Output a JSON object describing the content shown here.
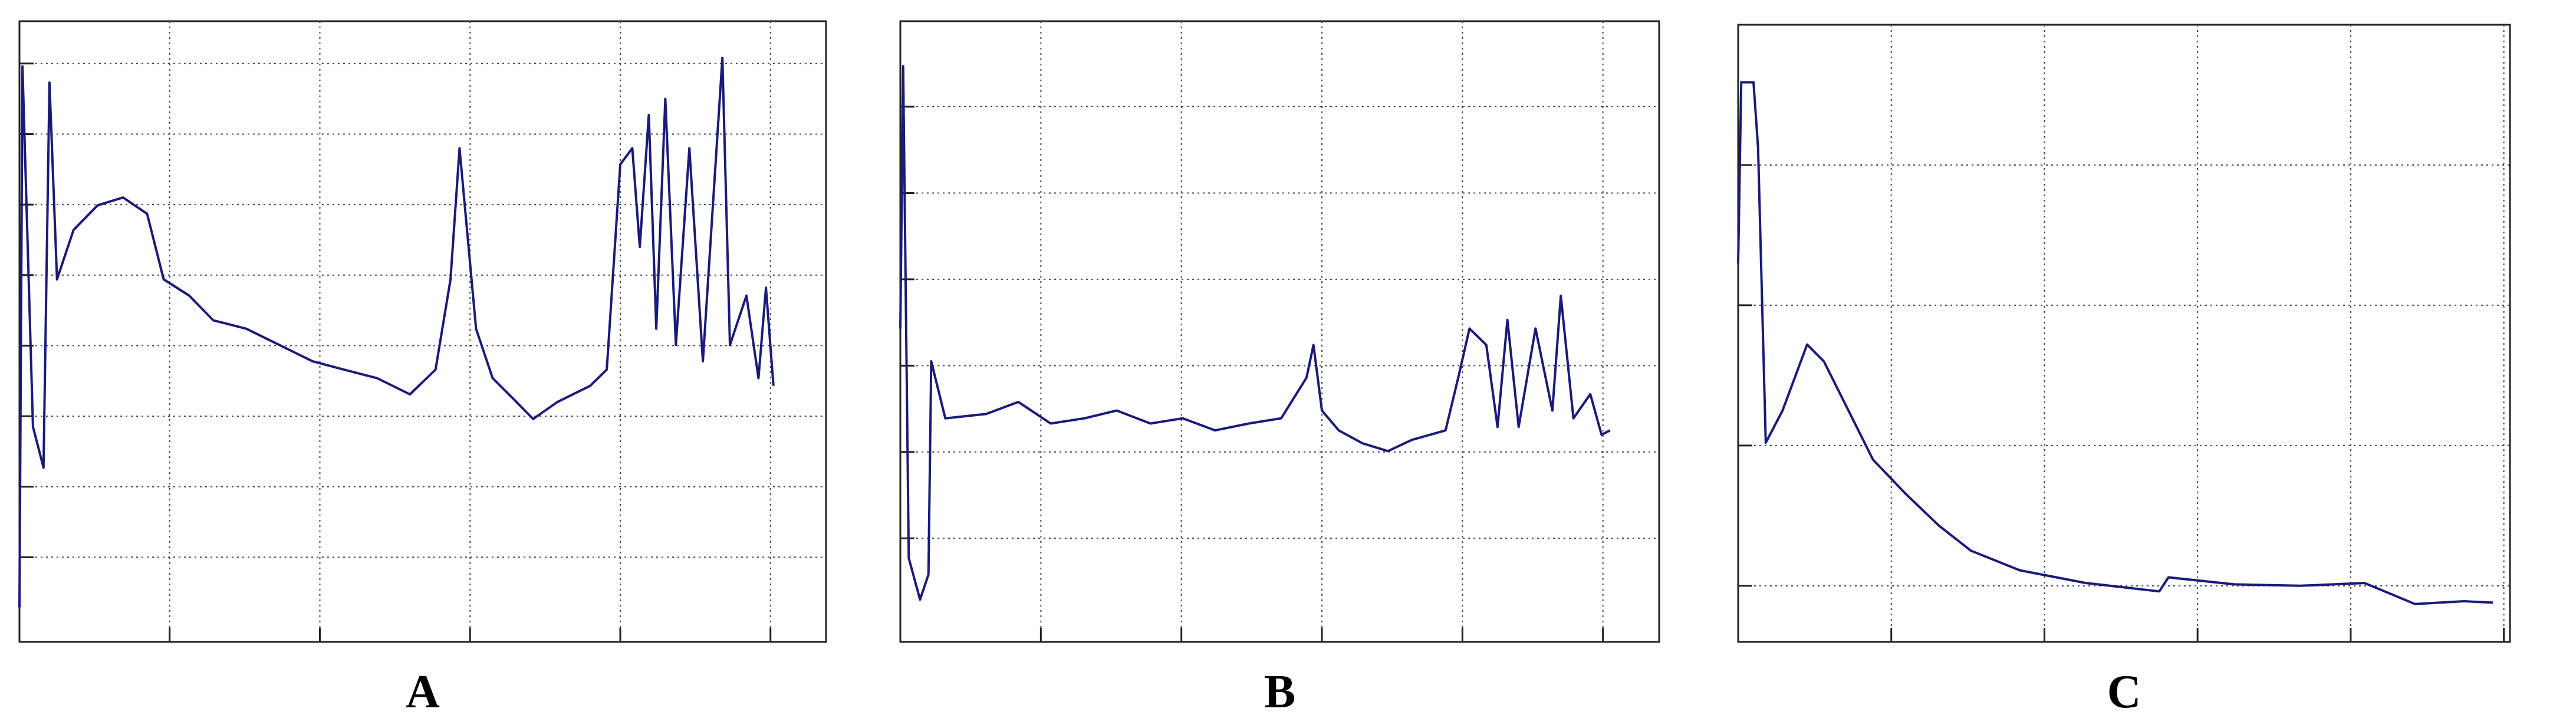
{
  "chart_data": [
    {
      "type": "line",
      "title": "A",
      "color": "#1a1a7a",
      "grid": true,
      "xlim": [
        0,
        5.37
      ],
      "xticks": [
        1,
        2,
        3,
        4,
        5
      ],
      "ylim": [
        0,
        8.8
      ],
      "yticks": [
        1.2,
        2.2,
        3.2,
        4.2,
        5.2,
        6.2,
        7.2,
        8.2
      ],
      "x": [
        0.0,
        0.02,
        0.09,
        0.16,
        0.2,
        0.25,
        0.36,
        0.52,
        0.69,
        0.85,
        0.96,
        1.13,
        1.29,
        1.51,
        1.73,
        1.95,
        2.16,
        2.38,
        2.6,
        2.77,
        2.87,
        2.93,
        3.04,
        3.15,
        3.31,
        3.42,
        3.58,
        3.8,
        3.91,
        4.0,
        4.08,
        4.13,
        4.19,
        4.24,
        4.3,
        4.37,
        4.46,
        4.55,
        4.68,
        4.73,
        4.84,
        4.92,
        4.97,
        5.02
      ],
      "values": [
        0.49,
        8.16,
        3.05,
        2.47,
        7.93,
        5.14,
        5.84,
        6.19,
        6.3,
        6.07,
        5.14,
        4.91,
        4.56,
        4.44,
        4.21,
        3.98,
        3.86,
        3.74,
        3.51,
        3.86,
        5.14,
        7.0,
        4.44,
        3.74,
        3.4,
        3.16,
        3.4,
        3.63,
        3.86,
        6.77,
        7.0,
        5.6,
        7.47,
        4.44,
        7.7,
        4.21,
        7.0,
        3.98,
        8.28,
        4.21,
        4.91,
        3.74,
        5.02,
        3.63
      ]
    },
    {
      "type": "line",
      "title": "B",
      "color": "#1a1a7a",
      "grid": true,
      "xlim": [
        0,
        5.4
      ],
      "xticks": [
        1,
        2,
        3,
        4,
        5
      ],
      "ylim": [
        0,
        7.19
      ],
      "yticks": [
        1.2,
        2.2,
        3.2,
        4.2,
        5.2,
        6.2
      ],
      "x": [
        0.0,
        0.02,
        0.06,
        0.14,
        0.2,
        0.22,
        0.32,
        0.61,
        0.84,
        1.07,
        1.31,
        1.54,
        1.78,
        2.01,
        2.24,
        2.48,
        2.71,
        2.89,
        2.94,
        3.0,
        3.12,
        3.29,
        3.47,
        3.64,
        3.88,
        3.97,
        4.05,
        4.17,
        4.25,
        4.32,
        4.4,
        4.52,
        4.64,
        4.7,
        4.79,
        4.91,
        4.99,
        5.05
      ],
      "values": [
        3.63,
        6.67,
        0.97,
        0.49,
        0.78,
        3.25,
        2.59,
        2.64,
        2.78,
        2.53,
        2.59,
        2.68,
        2.53,
        2.59,
        2.45,
        2.53,
        2.59,
        3.06,
        3.44,
        2.68,
        2.45,
        2.3,
        2.21,
        2.34,
        2.45,
        3.06,
        3.63,
        3.44,
        2.49,
        3.73,
        2.49,
        3.63,
        2.68,
        4.01,
        2.59,
        2.87,
        2.4,
        2.45
      ]
    },
    {
      "type": "line",
      "title": "C",
      "color": "#1a1a7a",
      "grid": true,
      "xlim": [
        0,
        5.04
      ],
      "xticks": [
        1,
        2,
        3,
        4,
        5
      ],
      "ylim": [
        0,
        4.4
      ],
      "yticks": [
        0.4,
        1.4,
        2.4,
        3.4
      ],
      "x": [
        0.0,
        0.02,
        0.1,
        0.13,
        0.18,
        0.29,
        0.45,
        0.56,
        0.72,
        0.88,
        1.09,
        1.31,
        1.52,
        1.84,
        2.27,
        2.75,
        2.81,
        3.24,
        3.67,
        4.09,
        4.42,
        4.74,
        4.93
      ],
      "values": [
        2.7,
        3.99,
        3.99,
        3.52,
        1.42,
        1.65,
        2.12,
        2.0,
        1.65,
        1.3,
        1.06,
        0.83,
        0.65,
        0.51,
        0.42,
        0.36,
        0.46,
        0.41,
        0.4,
        0.42,
        0.27,
        0.29,
        0.28
      ]
    }
  ]
}
